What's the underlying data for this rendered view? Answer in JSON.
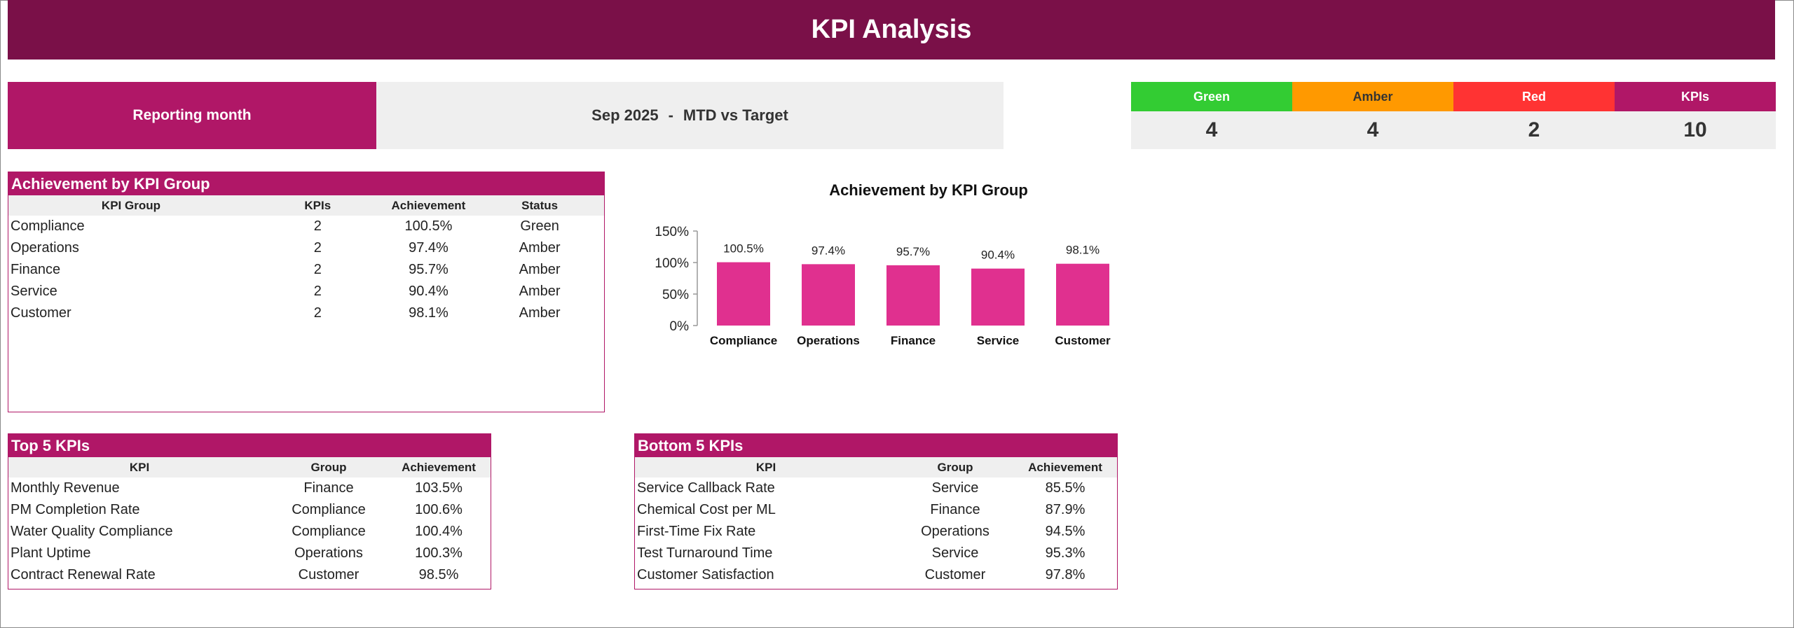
{
  "title": "KPI Analysis",
  "reporting": {
    "label": "Reporting month",
    "month": "Sep 2025",
    "separator": "-",
    "mode": "MTD vs Target"
  },
  "status_counts": [
    {
      "label": "Green",
      "value": "4",
      "color": "#33cc33",
      "text_color": "#ffffff"
    },
    {
      "label": "Amber",
      "value": "4",
      "color": "#ff9900",
      "text_color": "#333333"
    },
    {
      "label": "Red",
      "value": "2",
      "color": "#ff3333",
      "text_color": "#ffffff"
    },
    {
      "label": "KPIs",
      "value": "10",
      "color": "#b01767",
      "text_color": "#ffffff"
    }
  ],
  "achievement_table": {
    "title": "Achievement by KPI Group",
    "headers": [
      "KPI Group",
      "KPIs",
      "Achievement",
      "Status"
    ],
    "rows": [
      [
        "Compliance",
        "2",
        "100.5%",
        "Green"
      ],
      [
        "Operations",
        "2",
        "97.4%",
        "Amber"
      ],
      [
        "Finance",
        "2",
        "95.7%",
        "Amber"
      ],
      [
        "Service",
        "2",
        "90.4%",
        "Amber"
      ],
      [
        "Customer",
        "2",
        "98.1%",
        "Amber"
      ]
    ]
  },
  "top5": {
    "title": "Top 5 KPIs",
    "headers": [
      "KPI",
      "Group",
      "Achievement"
    ],
    "rows": [
      [
        "Monthly Revenue",
        "Finance",
        "103.5%"
      ],
      [
        "PM Completion Rate",
        "Compliance",
        "100.6%"
      ],
      [
        "Water Quality Compliance",
        "Compliance",
        "100.4%"
      ],
      [
        "Plant Uptime",
        "Operations",
        "100.3%"
      ],
      [
        "Contract Renewal Rate",
        "Customer",
        "98.5%"
      ]
    ]
  },
  "bottom5": {
    "title": "Bottom 5 KPIs",
    "headers": [
      "KPI",
      "Group",
      "Achievement"
    ],
    "rows": [
      [
        "Service Callback Rate",
        "Service",
        "85.5%"
      ],
      [
        "Chemical Cost per ML",
        "Finance",
        "87.9%"
      ],
      [
        "First-Time Fix Rate",
        "Operations",
        "94.5%"
      ],
      [
        "Test Turnaround Time",
        "Service",
        "95.3%"
      ],
      [
        "Customer Satisfaction",
        "Customer",
        "97.8%"
      ]
    ]
  },
  "chart_data": {
    "type": "bar",
    "title": "Achievement by KPI Group",
    "categories": [
      "Compliance",
      "Operations",
      "Finance",
      "Service",
      "Customer"
    ],
    "values": [
      100.5,
      97.4,
      95.7,
      90.4,
      98.1
    ],
    "value_labels": [
      "100.5%",
      "97.4%",
      "95.7%",
      "90.4%",
      "98.1%"
    ],
    "ylim": [
      0,
      150
    ],
    "yticks": [
      0,
      50,
      100,
      150
    ],
    "ytick_labels": [
      "0%",
      "50%",
      "100%",
      "150%"
    ],
    "bar_color": "#e0308f",
    "grid": false,
    "legend": "none"
  }
}
